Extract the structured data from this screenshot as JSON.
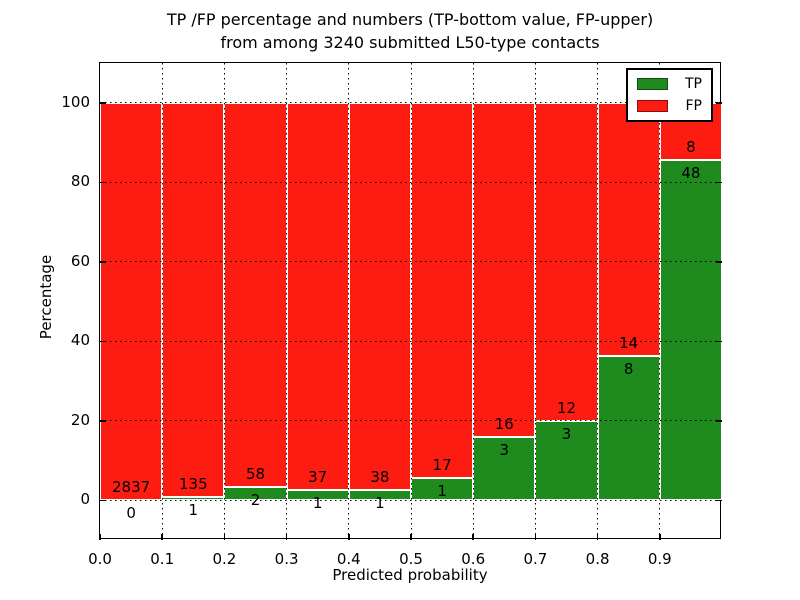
{
  "figure": {
    "title_line1": "TP /FP percentage and numbers (TP-bottom value, FP-upper)",
    "title_line2": "from among 3240 submitted L50-type contacts"
  },
  "axes": {
    "xlabel": "Predicted probability",
    "ylabel": "Percentage"
  },
  "legend": {
    "items": [
      {
        "label": "TP",
        "color": "#1f8b1f"
      },
      {
        "label": "FP",
        "color": "#fc1c12"
      }
    ]
  },
  "chart_data": {
    "type": "bar",
    "stacked": true,
    "title": "TP /FP percentage and numbers (TP-bottom value, FP-upper) from among 3240 submitted L50-type contacts",
    "xlabel": "Predicted probability",
    "ylabel": "Percentage",
    "xlim": [
      0.0,
      1.0
    ],
    "ylim": [
      -10,
      110
    ],
    "xticks": [
      "0.0",
      "0.1",
      "0.2",
      "0.3",
      "0.4",
      "0.5",
      "0.6",
      "0.7",
      "0.8",
      "0.9"
    ],
    "yticks": [
      0,
      20,
      40,
      60,
      80,
      100
    ],
    "grid": "dotted",
    "legend_position": "upper right",
    "total_submitted": 3240,
    "bin_edges": [
      0.0,
      0.1,
      0.2,
      0.3,
      0.4,
      0.5,
      0.6,
      0.7,
      0.8,
      0.9,
      1.0
    ],
    "series": [
      {
        "name": "TP",
        "color": "#1f8b1f",
        "counts": [
          0,
          1,
          2,
          1,
          1,
          1,
          3,
          3,
          8,
          48
        ],
        "pct": [
          0.0,
          0.7,
          3.3,
          2.6,
          2.6,
          5.6,
          15.8,
          20.0,
          36.4,
          85.7
        ]
      },
      {
        "name": "FP",
        "color": "#fc1c12",
        "counts": [
          2837,
          135,
          58,
          37,
          38,
          17,
          16,
          12,
          14,
          8
        ],
        "pct": [
          100.0,
          99.3,
          96.7,
          97.4,
          97.4,
          94.4,
          84.2,
          80.0,
          63.6,
          14.3
        ]
      }
    ]
  }
}
